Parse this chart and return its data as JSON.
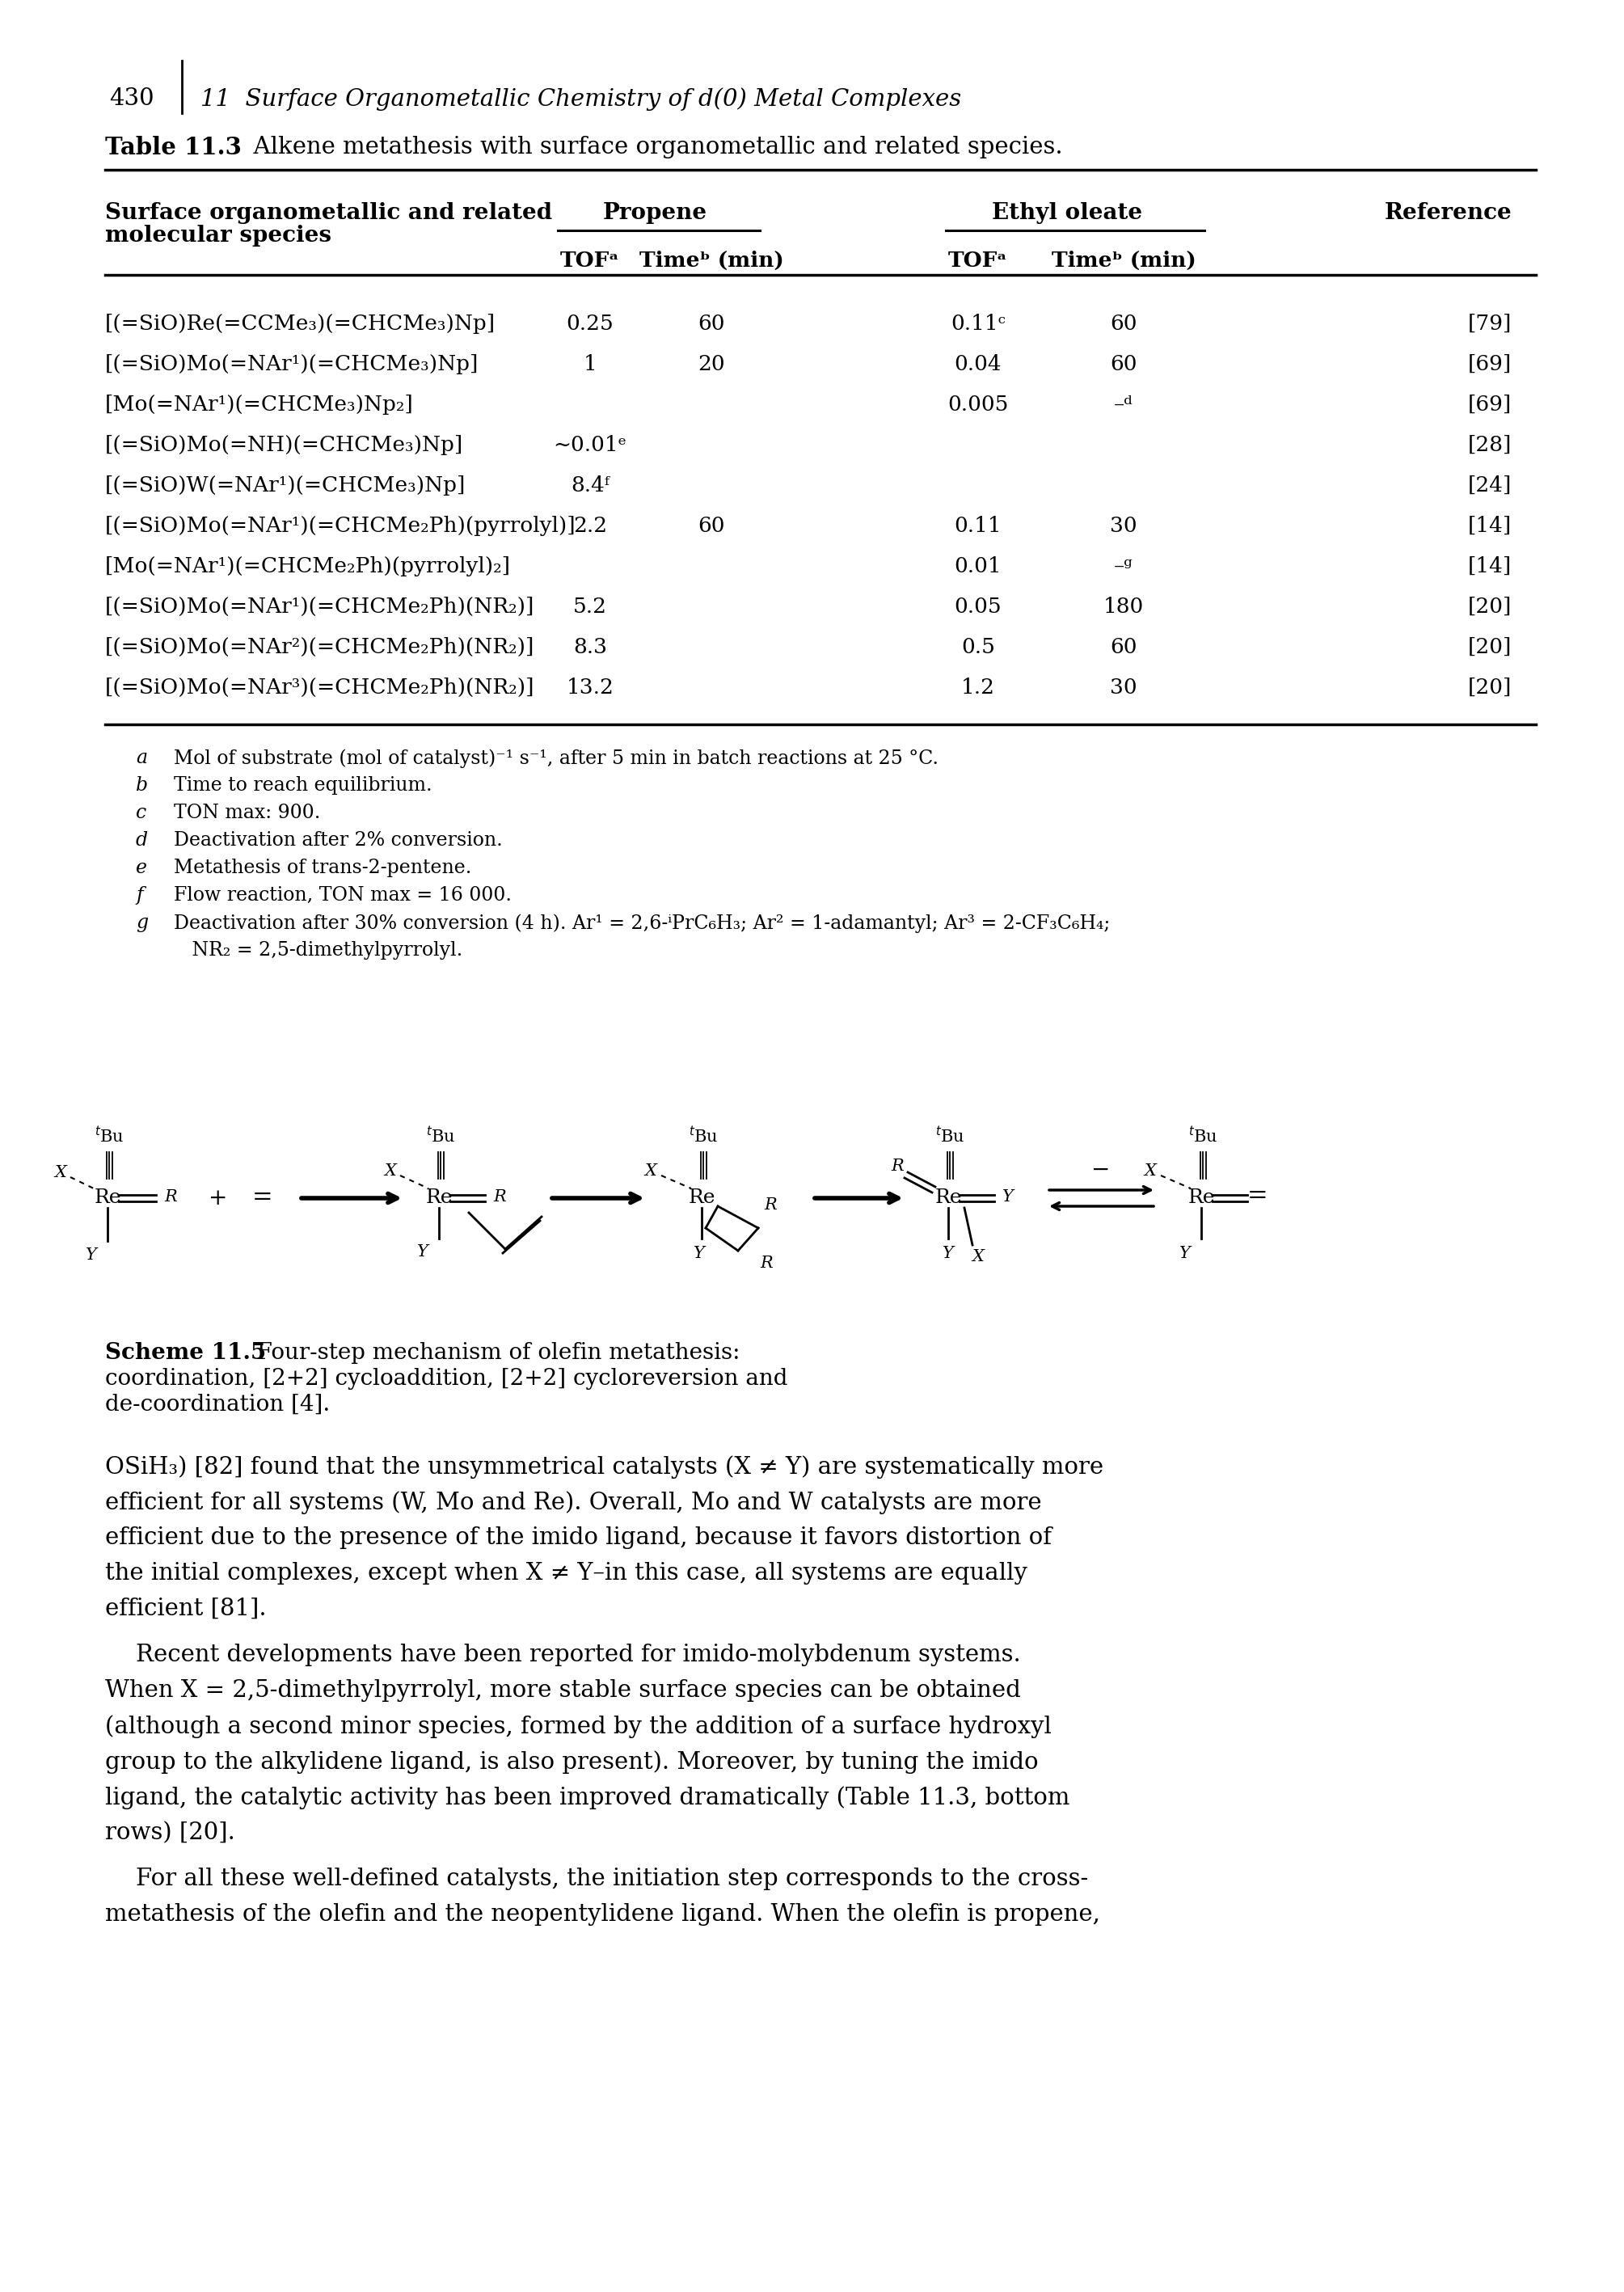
{
  "page_header_num": "430",
  "page_header_text": "11  Surface Organometallic Chemistry of d(0) Metal Complexes",
  "table_title_bold": "Table 11.3",
  "table_title_rest": "  Alkene metathesis with surface organometallic and related species.",
  "rows": [
    {
      "species": "[(=SiO)Re(=CCMe₃)(=CHCMe₃)Np]",
      "tof1": "0.25",
      "time1": "60",
      "tof2": "0.11ᶜ",
      "time2": "60",
      "ref": "[79]"
    },
    {
      "species": "[(=SiO)Mo(=NAr¹)(=CHCMe₃)Np]",
      "tof1": "1",
      "time1": "20",
      "tof2": "0.04",
      "time2": "60",
      "ref": "[69]"
    },
    {
      "species": "[Mo(=NAr¹)(=CHCMe₃)Np₂]",
      "tof1": "",
      "time1": "",
      "tof2": "0.005",
      "time2": "–ᵈ",
      "ref": "[69]"
    },
    {
      "species": "[(=SiO)Mo(=NH)(=CHCMe₃)Np]",
      "tof1": "~0.01ᵉ",
      "time1": "",
      "tof2": "",
      "time2": "",
      "ref": "[28]"
    },
    {
      "species": "[(=SiO)W(=NAr¹)(=CHCMe₃)Np]",
      "tof1": "8.4ᶠ",
      "time1": "",
      "tof2": "",
      "time2": "",
      "ref": "[24]"
    },
    {
      "species": "[(=SiO)Mo(=NAr¹)(=CHCMe₂Ph)(pyrrolyl)]",
      "tof1": "2.2",
      "time1": "60",
      "tof2": "0.11",
      "time2": "30",
      "ref": "[14]"
    },
    {
      "species": "[Mo(=NAr¹)(=CHCMe₂Ph)(pyrrolyl)₂]",
      "tof1": "",
      "time1": "",
      "tof2": "0.01",
      "time2": "–ᵍ",
      "ref": "[14]"
    },
    {
      "species": "[(=SiO)Mo(=NAr¹)(=CHCMe₂Ph)(NR₂)]",
      "tof1": "5.2",
      "time1": "",
      "tof2": "0.05",
      "time2": "180",
      "ref": "[20]"
    },
    {
      "species": "[(=SiO)Mo(=NAr²)(=CHCMe₂Ph)(NR₂)]",
      "tof1": "8.3",
      "time1": "",
      "tof2": "0.5",
      "time2": "60",
      "ref": "[20]"
    },
    {
      "species": "[(=SiO)Mo(=NAr³)(=CHCMe₂Ph)(NR₂)]",
      "tof1": "13.2",
      "time1": "",
      "tof2": "1.2",
      "time2": "30",
      "ref": "[20]"
    }
  ],
  "footnotes": [
    [
      "a",
      "  Mol of substrate (mol of catalyst)⁻¹ s⁻¹, after 5 min in batch reactions at 25 °C."
    ],
    [
      "b",
      "  Time to reach equilibrium."
    ],
    [
      "c",
      "  TON max: 900."
    ],
    [
      "d",
      "  Deactivation after 2% conversion."
    ],
    [
      "e",
      "  Metathesis of trans-2-pentene."
    ],
    [
      "f",
      "  Flow reaction, TON max = 16 000."
    ],
    [
      "g",
      "  Deactivation after 30% conversion (4 h). Ar¹ = 2,6-ⁱPrC₆H₃; Ar² = 1-adamantyl; Ar³ = 2-CF₃C₆H₄;"
    ],
    [
      "",
      "     NR₂ = 2,5-dimethylpyrrolyl."
    ]
  ],
  "body_text": [
    "OSiH₃) [82] found that the unsymmetrical catalysts (X ≠ Y) are systematically more",
    "efficient for all systems (W, Mo and Re). Overall, Mo and W catalysts are more",
    "efficient due to the presence of the imido ligand, because it favors distortion of",
    "the initial complexes, except when X ≠ Y–in this case, all systems are equally",
    "efficient [81].",
    "INDENT",
    "Recent developments have been reported for imido-molybdenum systems.",
    "When X = 2,5-dimethylpyrrolyl, more stable surface species can be obtained",
    "(although a second minor species, formed by the addition of a surface hydroxyl",
    "group to the alkylidene ligand, is also present). Moreover, by tuning the imido",
    "ligand, the catalytic activity has been improved dramatically (Table 11.3, bottom",
    "rows) [20].",
    "INDENT",
    "For all these well-defined catalysts, the initiation step corresponds to the cross-",
    "metathesis of the olefin and the neopentylidene ligand. When the olefin is propene,"
  ]
}
